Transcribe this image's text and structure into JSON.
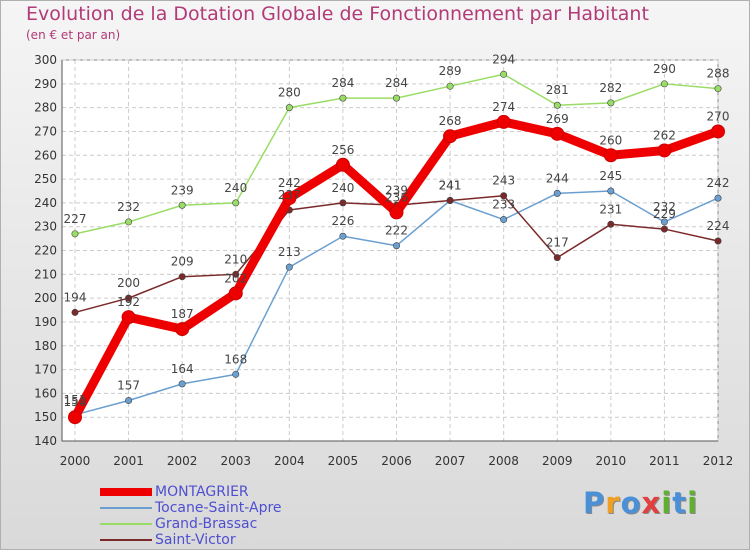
{
  "chart_data": {
    "type": "line",
    "title": "Evolution de la Dotation Globale de Fonctionnement par Habitant",
    "subtitle": "(en € et par an)",
    "x": [
      "2000",
      "2001",
      "2002",
      "2003",
      "2004",
      "2005",
      "2006",
      "2007",
      "2008",
      "2009",
      "2010",
      "2011",
      "2012"
    ],
    "ylim": [
      140,
      300
    ],
    "yticks": [
      140,
      150,
      160,
      170,
      180,
      190,
      200,
      210,
      220,
      230,
      240,
      250,
      260,
      270,
      280,
      290,
      300
    ],
    "grid": true,
    "legend_position": "bottom-left",
    "series": [
      {
        "name": "Grand-Brassac",
        "color": "#99dd66",
        "values": [
          227,
          232,
          239,
          240,
          280,
          284,
          284,
          289,
          294,
          281,
          282,
          290,
          288
        ]
      },
      {
        "name": "Tocane-Saint-Apre",
        "color": "#6a9fd0",
        "values": [
          151,
          157,
          164,
          168,
          213,
          226,
          222,
          241,
          233,
          244,
          245,
          232,
          242
        ]
      },
      {
        "name": "Saint-Victor",
        "color": "#7a2a2a",
        "values": [
          194,
          200,
          209,
          210,
          237,
          240,
          239,
          241,
          243,
          217,
          231,
          229,
          224
        ]
      },
      {
        "name": "MONTAGRIER",
        "color": "#ee0000",
        "values": [
          150,
          192,
          187,
          202,
          242,
          256,
          236,
          268,
          274,
          269,
          260,
          262,
          270
        ]
      }
    ],
    "value_labels": {
      "Grand-Brassac": [
        "227",
        "232",
        "239",
        "240",
        "280",
        "284",
        "284",
        "289",
        "294",
        "281",
        "282",
        "290",
        "288"
      ],
      "Tocane-Saint-Apre": [
        "151",
        "157",
        "164",
        "168",
        "213",
        "226",
        "222",
        "241",
        "233",
        "244",
        "245",
        "232",
        "242"
      ],
      "Saint-Victor": [
        "194",
        "200",
        "209",
        "210",
        "237",
        "240",
        "239",
        "241",
        "243",
        "217",
        "231",
        "229",
        "224"
      ],
      "MONTAGRIER": [
        "150",
        "192",
        "187",
        "202",
        "242",
        "256",
        "236",
        "268",
        "274",
        "269",
        "260",
        "262",
        "270"
      ]
    },
    "legend": [
      "MONTAGRIER",
      "Tocane-Saint-Apre",
      "Grand-Brassac",
      "Saint-Victor"
    ]
  },
  "logo": {
    "text": "Proxiti",
    "letters": [
      "P",
      "r",
      "o",
      "x",
      "i",
      "t",
      "i"
    ],
    "colors": [
      "#4a90d9",
      "#f0a020",
      "#4a90d9",
      "#e04040",
      "#60b030",
      "#4a90d9",
      "#60b030"
    ]
  }
}
